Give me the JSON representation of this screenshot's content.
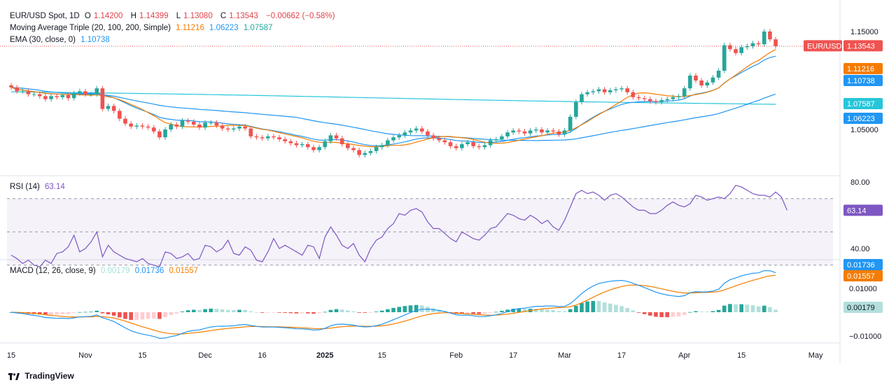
{
  "header": {
    "symbol": "EUR/USD Spot, 1D",
    "o_label": "O",
    "o_value": "1.14200",
    "h_label": "H",
    "h_value": "1.14399",
    "l_label": "L",
    "l_value": "1.13080",
    "c_label": "C",
    "c_value": "1.13543",
    "change": "−0.00662 (−0.58%)",
    "ma_label": "Moving Average Triple (20, 100, 200, Simple)",
    "ma_values": [
      "1.11216",
      "1.06223",
      "1.07587"
    ],
    "ema_label": "EMA (30, close, 0)",
    "ema_value": "1.10738",
    "rsi_label": "RSI (14)",
    "rsi_value": "63.14",
    "macd_label": "MACD (12, 26, close, 9)",
    "macd_values": [
      "0.00179",
      "0.01736",
      "0.01557"
    ]
  },
  "brand": {
    "name": "TradingView"
  },
  "colors": {
    "up": "#26a69a",
    "down": "#ef5350",
    "ma20": "#f57c00",
    "ma100": "#2196f3",
    "ma200": "#26c6da",
    "ema": "#2196f3",
    "rsi": "#7e57c2",
    "macd": "#2196f3",
    "signal": "#f57c00",
    "hist_up": "#26a69a",
    "hist_up_light": "#b2dfdb",
    "hist_down": "#ef5350",
    "hist_down_light": "#ffcdd2"
  },
  "chart_data": {
    "type": "candlestick",
    "price_axis_ticks": [
      "1.15000",
      "1.05000"
    ],
    "price_tick_values": [
      1.15,
      1.05
    ],
    "price_labels": [
      {
        "text": "EUR/USD",
        "value": 1.13543,
        "color": "#ef5350"
      },
      {
        "text": "1.13543",
        "value": 1.13543,
        "color": "#ef5350"
      },
      {
        "text": "1.11216",
        "value": 1.11216,
        "color": "#f57c00"
      },
      {
        "text": "1.10738",
        "value": 1.10738,
        "color": "#2196f3"
      },
      {
        "text": "1.07587",
        "value": 1.07587,
        "color": "#26c6da"
      },
      {
        "text": "1.06223",
        "value": 1.06223,
        "color": "#2196f3"
      }
    ],
    "rsi_axis_ticks": [
      "80.00",
      "40.00"
    ],
    "rsi_tick_values": [
      80,
      40
    ],
    "rsi_levels": [
      70,
      50,
      30
    ],
    "rsi_last_label": "63.14",
    "macd_axis_ticks": [
      "0.01000",
      "−0.01000"
    ],
    "macd_tick_values": [
      0.01,
      -0.01
    ],
    "macd_last_labels": [
      {
        "text": "0.01736",
        "value": 0.01736,
        "color": "#2196f3"
      },
      {
        "text": "0.01557",
        "value": 0.01557,
        "color": "#f57c00"
      },
      {
        "text": "0.00179",
        "value": 0.00179,
        "color": "#b2dfdb"
      }
    ],
    "time_axis": [
      {
        "label": "15",
        "bar": 0
      },
      {
        "label": "Nov",
        "bar": 13
      },
      {
        "label": "15",
        "bar": 23
      },
      {
        "label": "Dec",
        "bar": 34
      },
      {
        "label": "16",
        "bar": 44
      },
      {
        "label": "2025",
        "bar": 55,
        "bold": true
      },
      {
        "label": "15",
        "bar": 65
      },
      {
        "label": "Feb",
        "bar": 78
      },
      {
        "label": "17",
        "bar": 88
      },
      {
        "label": "Mar",
        "bar": 97
      },
      {
        "label": "17",
        "bar": 107
      },
      {
        "label": "Apr",
        "bar": 118
      },
      {
        "label": "15",
        "bar": 128
      },
      {
        "label": "May",
        "bar": 141
      }
    ],
    "closes": [
      1.093,
      1.089,
      1.089,
      1.086,
      1.086,
      1.084,
      1.081,
      1.084,
      1.083,
      1.085,
      1.082,
      1.087,
      1.089,
      1.086,
      1.086,
      1.092,
      1.071,
      1.074,
      1.069,
      1.061,
      1.056,
      1.053,
      1.054,
      1.053,
      1.052,
      1.048,
      1.042,
      1.05,
      1.055,
      1.053,
      1.059,
      1.058,
      1.055,
      1.052,
      1.057,
      1.057,
      1.054,
      1.051,
      1.05,
      1.051,
      1.053,
      1.051,
      1.043,
      1.042,
      1.041,
      1.043,
      1.042,
      1.04,
      1.038,
      1.036,
      1.034,
      1.035,
      1.032,
      1.029,
      1.032,
      1.038,
      1.044,
      1.041,
      1.035,
      1.031,
      1.029,
      1.024,
      1.026,
      1.028,
      1.032,
      1.034,
      1.039,
      1.042,
      1.044,
      1.047,
      1.049,
      1.051,
      1.048,
      1.044,
      1.041,
      1.039,
      1.037,
      1.033,
      1.031,
      1.035,
      1.037,
      1.033,
      1.032,
      1.034,
      1.039,
      1.04,
      1.043,
      1.047,
      1.049,
      1.048,
      1.046,
      1.049,
      1.05,
      1.047,
      1.049,
      1.048,
      1.045,
      1.049,
      1.063,
      1.078,
      1.086,
      1.088,
      1.089,
      1.091,
      1.088,
      1.09,
      1.091,
      1.092,
      1.088,
      1.083,
      1.082,
      1.081,
      1.079,
      1.078,
      1.08,
      1.081,
      1.083,
      1.084,
      1.092,
      1.105,
      1.1,
      1.095,
      1.098,
      1.103,
      1.11,
      1.136,
      1.132,
      1.128,
      1.134,
      1.135,
      1.138,
      1.137,
      1.15,
      1.142,
      1.135
    ],
    "rsi": [
      36,
      34,
      31,
      33,
      30,
      29,
      33,
      31,
      37,
      38,
      41,
      48,
      38,
      40,
      44,
      50,
      35,
      42,
      38,
      36,
      34,
      33,
      32,
      34,
      31,
      30,
      29,
      38,
      37,
      34,
      35,
      37,
      33,
      34,
      42,
      41,
      38,
      40,
      45,
      37,
      36,
      41,
      39,
      33,
      32,
      38,
      46,
      40,
      42,
      40,
      38,
      36,
      42,
      41,
      34,
      47,
      53,
      48,
      42,
      40,
      43,
      36,
      32,
      40,
      45,
      47,
      52,
      55,
      61,
      60,
      63,
      64,
      62,
      56,
      52,
      52,
      49,
      46,
      44,
      50,
      48,
      46,
      45,
      48,
      52,
      53,
      57,
      61,
      60,
      58,
      57,
      60,
      58,
      55,
      57,
      53,
      51,
      57,
      65,
      73,
      75,
      73,
      74,
      72,
      69,
      72,
      73,
      71,
      68,
      65,
      63,
      63,
      61,
      61,
      63,
      66,
      68,
      66,
      65,
      67,
      72,
      71,
      69,
      70,
      71,
      70,
      73,
      78,
      77,
      75,
      73,
      72,
      72,
      71,
      74,
      71,
      63
    ]
  }
}
